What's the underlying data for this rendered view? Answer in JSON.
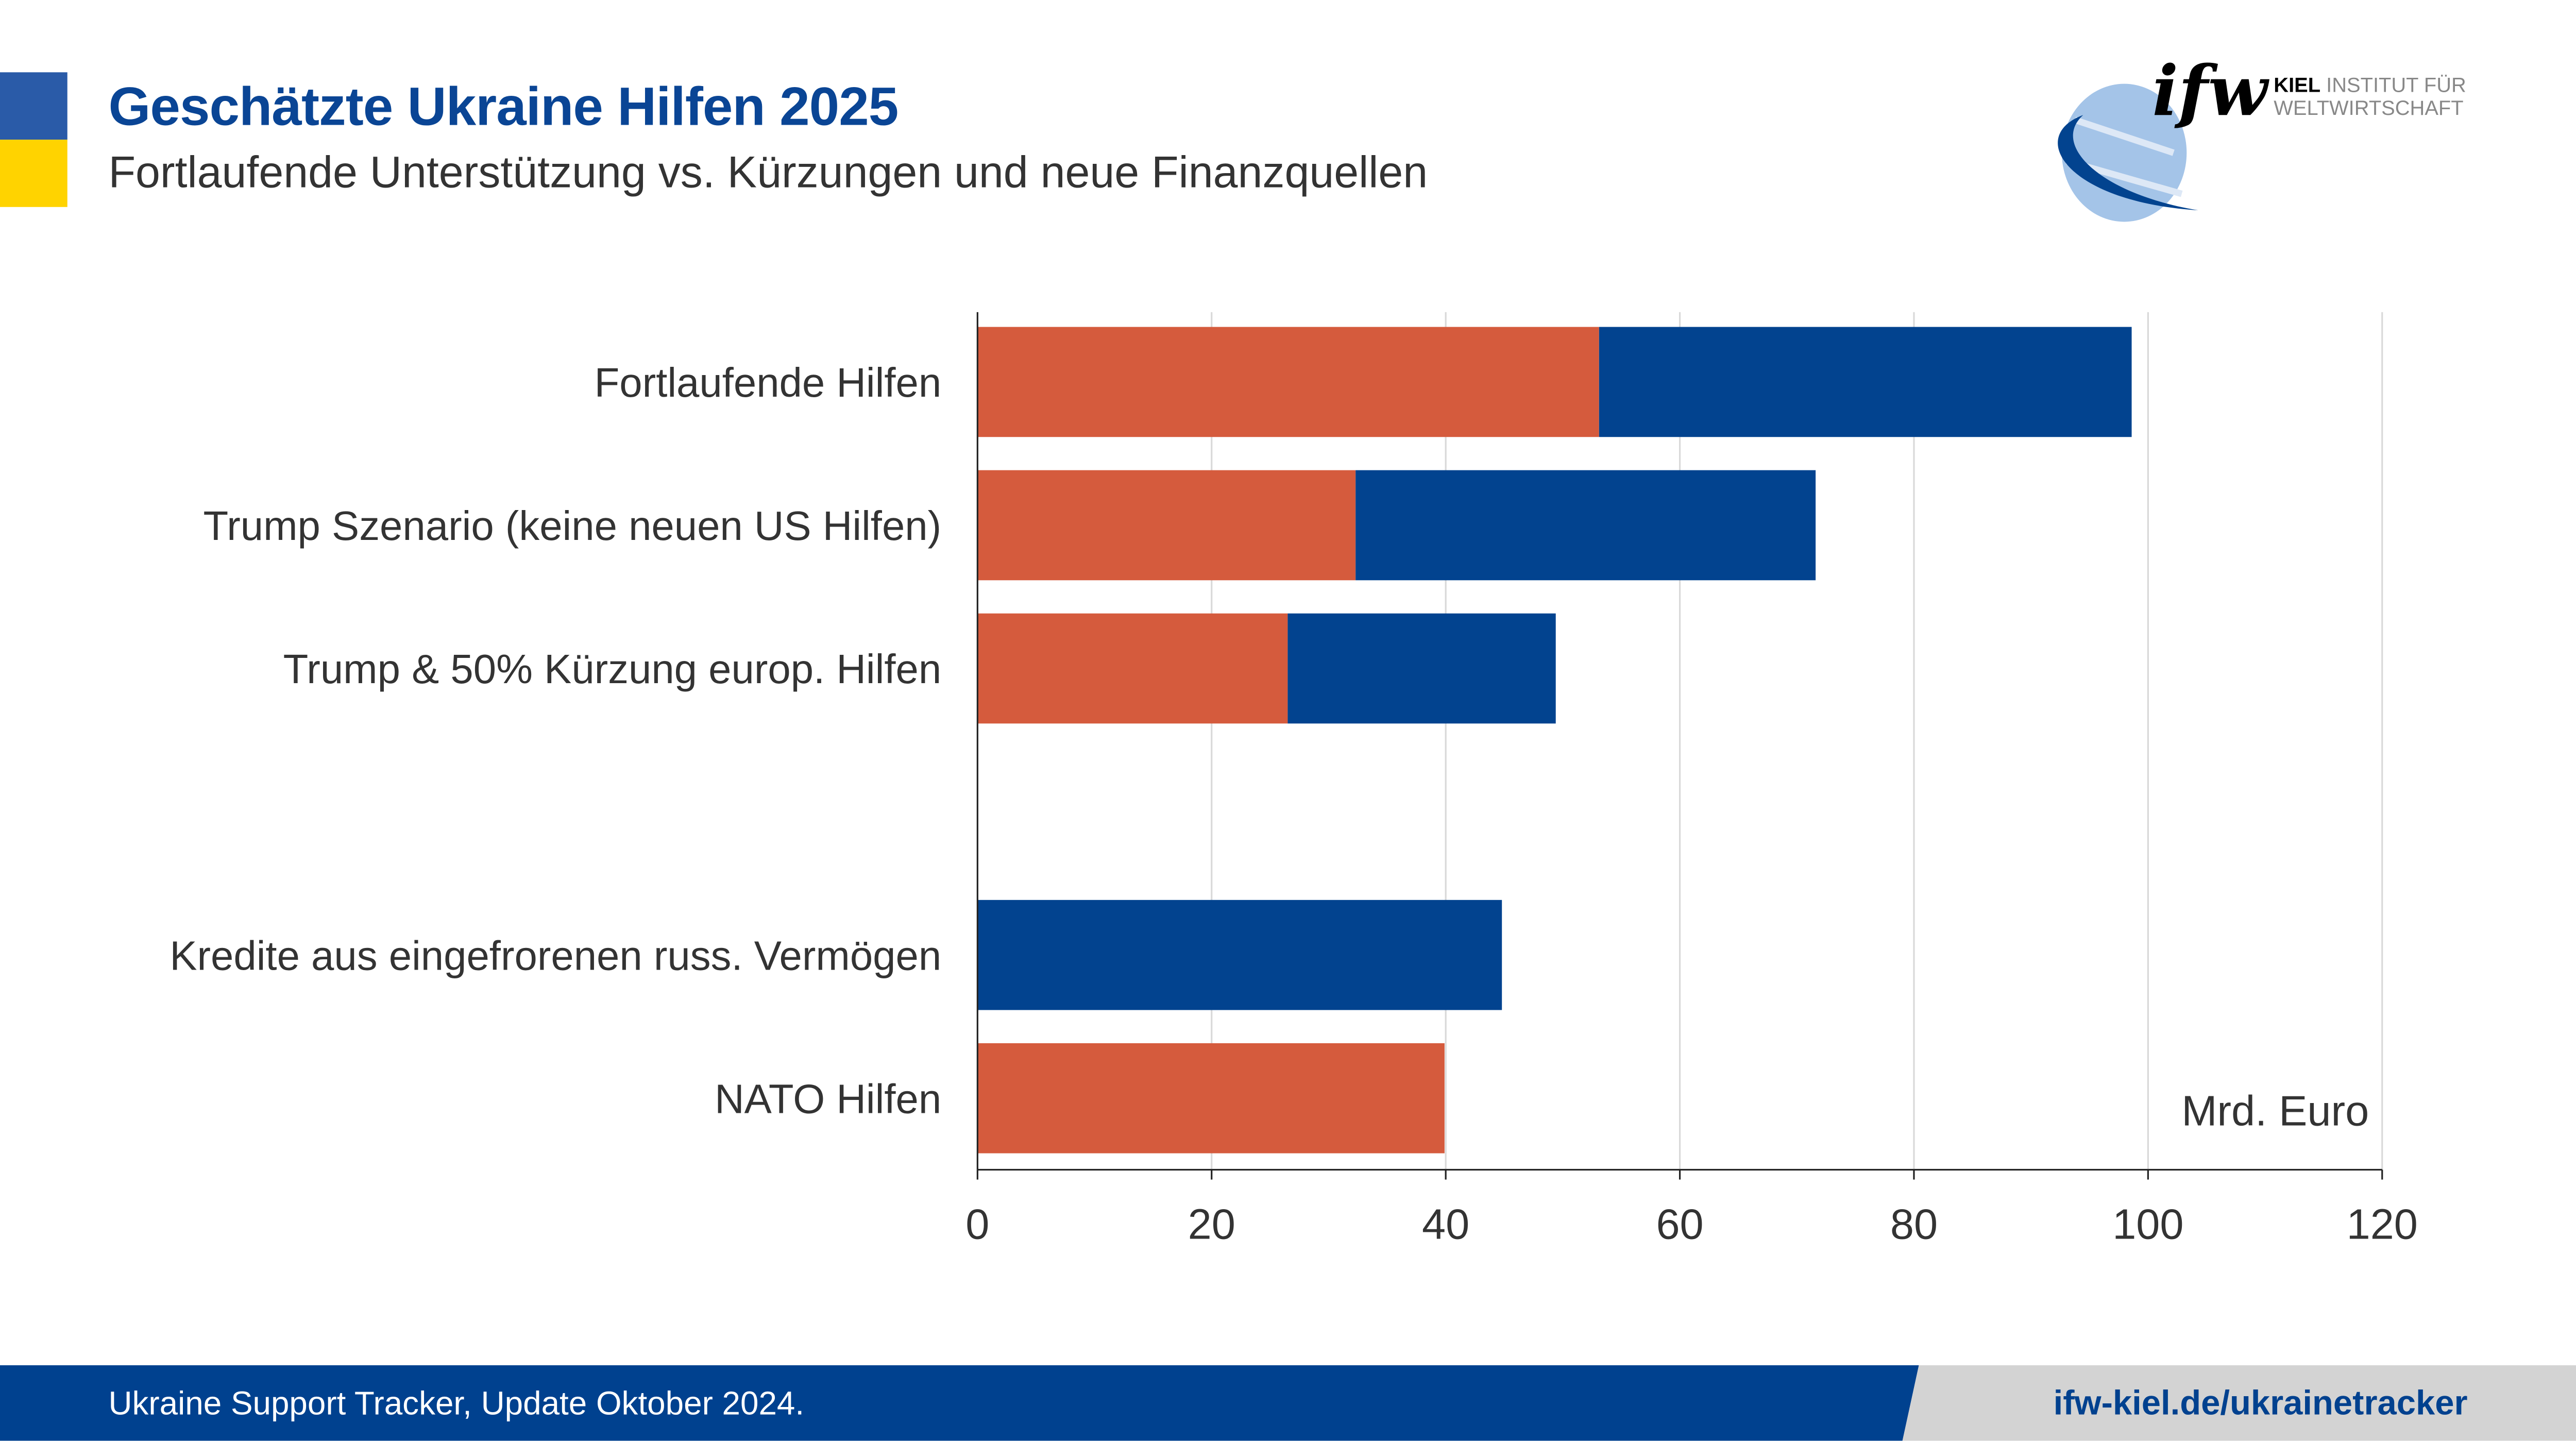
{
  "header": {
    "title": "Geschätzte Ukraine Hilfen 2025",
    "subtitle": "Fortlaufende Unterstützung vs. Kürzungen und neue Finanzquellen"
  },
  "logo": {
    "mark": "ifw",
    "line1_bold": "KIEL",
    "line1": "INSTITUT FÜR",
    "line2": "WELTWIRTSCHAFT"
  },
  "footer": {
    "source": "Ukraine Support Tracker, Update Oktober 2024.",
    "link": "ifw-kiel.de/ukrainetracker"
  },
  "colors": {
    "orange": "#d55b3d",
    "blue": "#02438f",
    "flag_blue": "#2a5ba8",
    "flag_yellow": "#ffd300"
  },
  "chart_data": {
    "type": "bar",
    "orientation": "horizontal",
    "stacked": true,
    "categories": [
      "Fortlaufende Hilfen",
      "Trump Szenario (keine neuen US Hilfen)",
      "Trump & 50% Kürzung europ. Hilfen",
      "",
      "Kredite aus eingefrorenen russ. Vermögen",
      "NATO Hilfen"
    ],
    "series": [
      {
        "color": "#d55b3d",
        "values": [
          53.1,
          32.3,
          26.5,
          null,
          0,
          39.9
        ]
      },
      {
        "color": "#02438f",
        "values": [
          45.5,
          39.3,
          22.9,
          null,
          44.8,
          0
        ]
      }
    ],
    "xlim": [
      0,
      120
    ],
    "xticks": [
      "0",
      "20",
      "40",
      "60",
      "80",
      "100",
      "120"
    ],
    "unit_label": "Mrd. Euro",
    "grid": "vertical"
  }
}
